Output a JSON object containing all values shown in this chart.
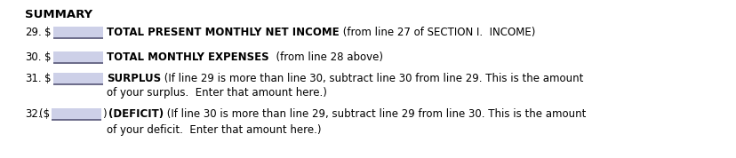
{
  "bg_color": "#ffffff",
  "text_color": "#000000",
  "highlight_color": "#cdd0e8",
  "title": "SUMMARY",
  "title_fontsize": 9.5,
  "lines": [
    {
      "num": "29.",
      "box_style": "dollar",
      "bold_text": "TOTAL PRESENT MONTHLY NET INCOME",
      "normal_text": " (from line 27 of SECTION I.  INCOME)",
      "wrap_text": null
    },
    {
      "num": "30.",
      "box_style": "dollar",
      "bold_text": "TOTAL MONTHLY EXPENSES",
      "normal_text": "  (from line 28 above)",
      "wrap_text": null
    },
    {
      "num": "31.",
      "box_style": "dollar",
      "bold_text": "SURPLUS",
      "normal_text": " (If line 29 is more than line 30, subtract line 30 from line 29. This is the amount",
      "wrap_text": "of your surplus.  Enter that amount here.)"
    },
    {
      "num": "32.",
      "box_style": "paren",
      "bold_text": "(DEFICIT)",
      "normal_text": " (If line 30 is more than line 29, subtract line 29 from line 30. This is the amount",
      "wrap_text": "of your deficit.  Enter that amount here.)"
    }
  ],
  "fontsize": 8.5,
  "fig_width": 8.29,
  "fig_height": 1.78,
  "dpi": 100
}
